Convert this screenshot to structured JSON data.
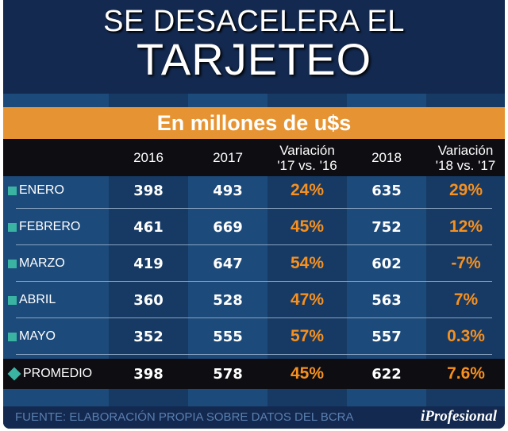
{
  "title": {
    "line1": "SE DESACELERA EL",
    "line2": "TARJETEO"
  },
  "subtitle": "En millones de u$s",
  "chart_data": {
    "type": "table",
    "title": "SE DESACELERA EL TARJETEO",
    "subtitle": "En millones de u$s",
    "columns": [
      "2016",
      "2017",
      "Variación '17 vs. '16",
      "2018",
      "Variación '18 vs. '17"
    ],
    "rows": [
      {
        "label": "ENERO",
        "values": [
          "398",
          "493",
          "24%",
          "635",
          "29%"
        ]
      },
      {
        "label": "FEBRERO",
        "values": [
          "461",
          "669",
          "45%",
          "752",
          "12%"
        ]
      },
      {
        "label": "MARZO",
        "values": [
          "419",
          "647",
          "54%",
          "602",
          "-7%"
        ]
      },
      {
        "label": "ABRIL",
        "values": [
          "360",
          "528",
          "47%",
          "563",
          "7%"
        ]
      },
      {
        "label": "MAYO",
        "values": [
          "352",
          "555",
          "57%",
          "557",
          "0.3%"
        ]
      }
    ],
    "summary": {
      "label": "PROMEDIO",
      "values": [
        "398",
        "578",
        "45%",
        "622",
        "7.6%"
      ]
    }
  },
  "header": {
    "c0": "2016",
    "c1": "2017",
    "c2a": "Variación",
    "c2b": "'17 vs. '16",
    "c3": "2018",
    "c4a": "Variación",
    "c4b": "'18 vs. '17"
  },
  "footer": {
    "source": "FUENTE: ELABORACIÓN PROPIA SOBRE DATOS DEL BCRA",
    "logo": "iProfesional"
  },
  "colors": {
    "accent": "#e69433",
    "pct": "#f7901e",
    "marker": "#3bb3a3"
  }
}
